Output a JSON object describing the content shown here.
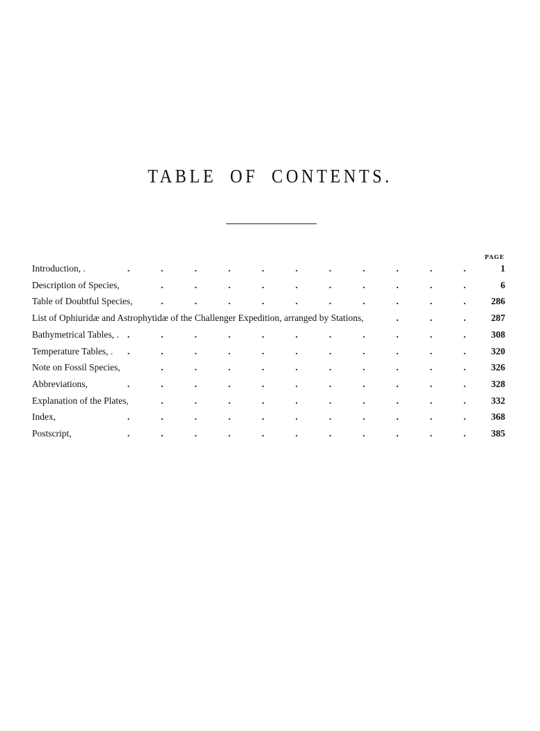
{
  "title": "TABLE OF CONTENTS.",
  "page_column_header": "PAGE",
  "entries": [
    {
      "label": "Introduction, .",
      "page": "1"
    },
    {
      "label": "Description of Species,",
      "page": "6"
    },
    {
      "label": "Table of Doubtful Species,",
      "page": "286"
    },
    {
      "label": "List of Ophiuridæ and Astrophytidæ of the Challenger Expedition, arranged by Stations,",
      "page": "287"
    },
    {
      "label": "Bathymetrical Tables, .",
      "page": "308"
    },
    {
      "label": "Temperature Tables, .",
      "page": "320"
    },
    {
      "label": "Note on Fossil Species,",
      "page": "326"
    },
    {
      "label": "Abbreviations,",
      "page": "328"
    },
    {
      "label": "Explanation of the Plates,",
      "page": "332"
    },
    {
      "label": "Index,",
      "page": "368"
    },
    {
      "label": "Postscript,",
      "page": "385"
    }
  ]
}
